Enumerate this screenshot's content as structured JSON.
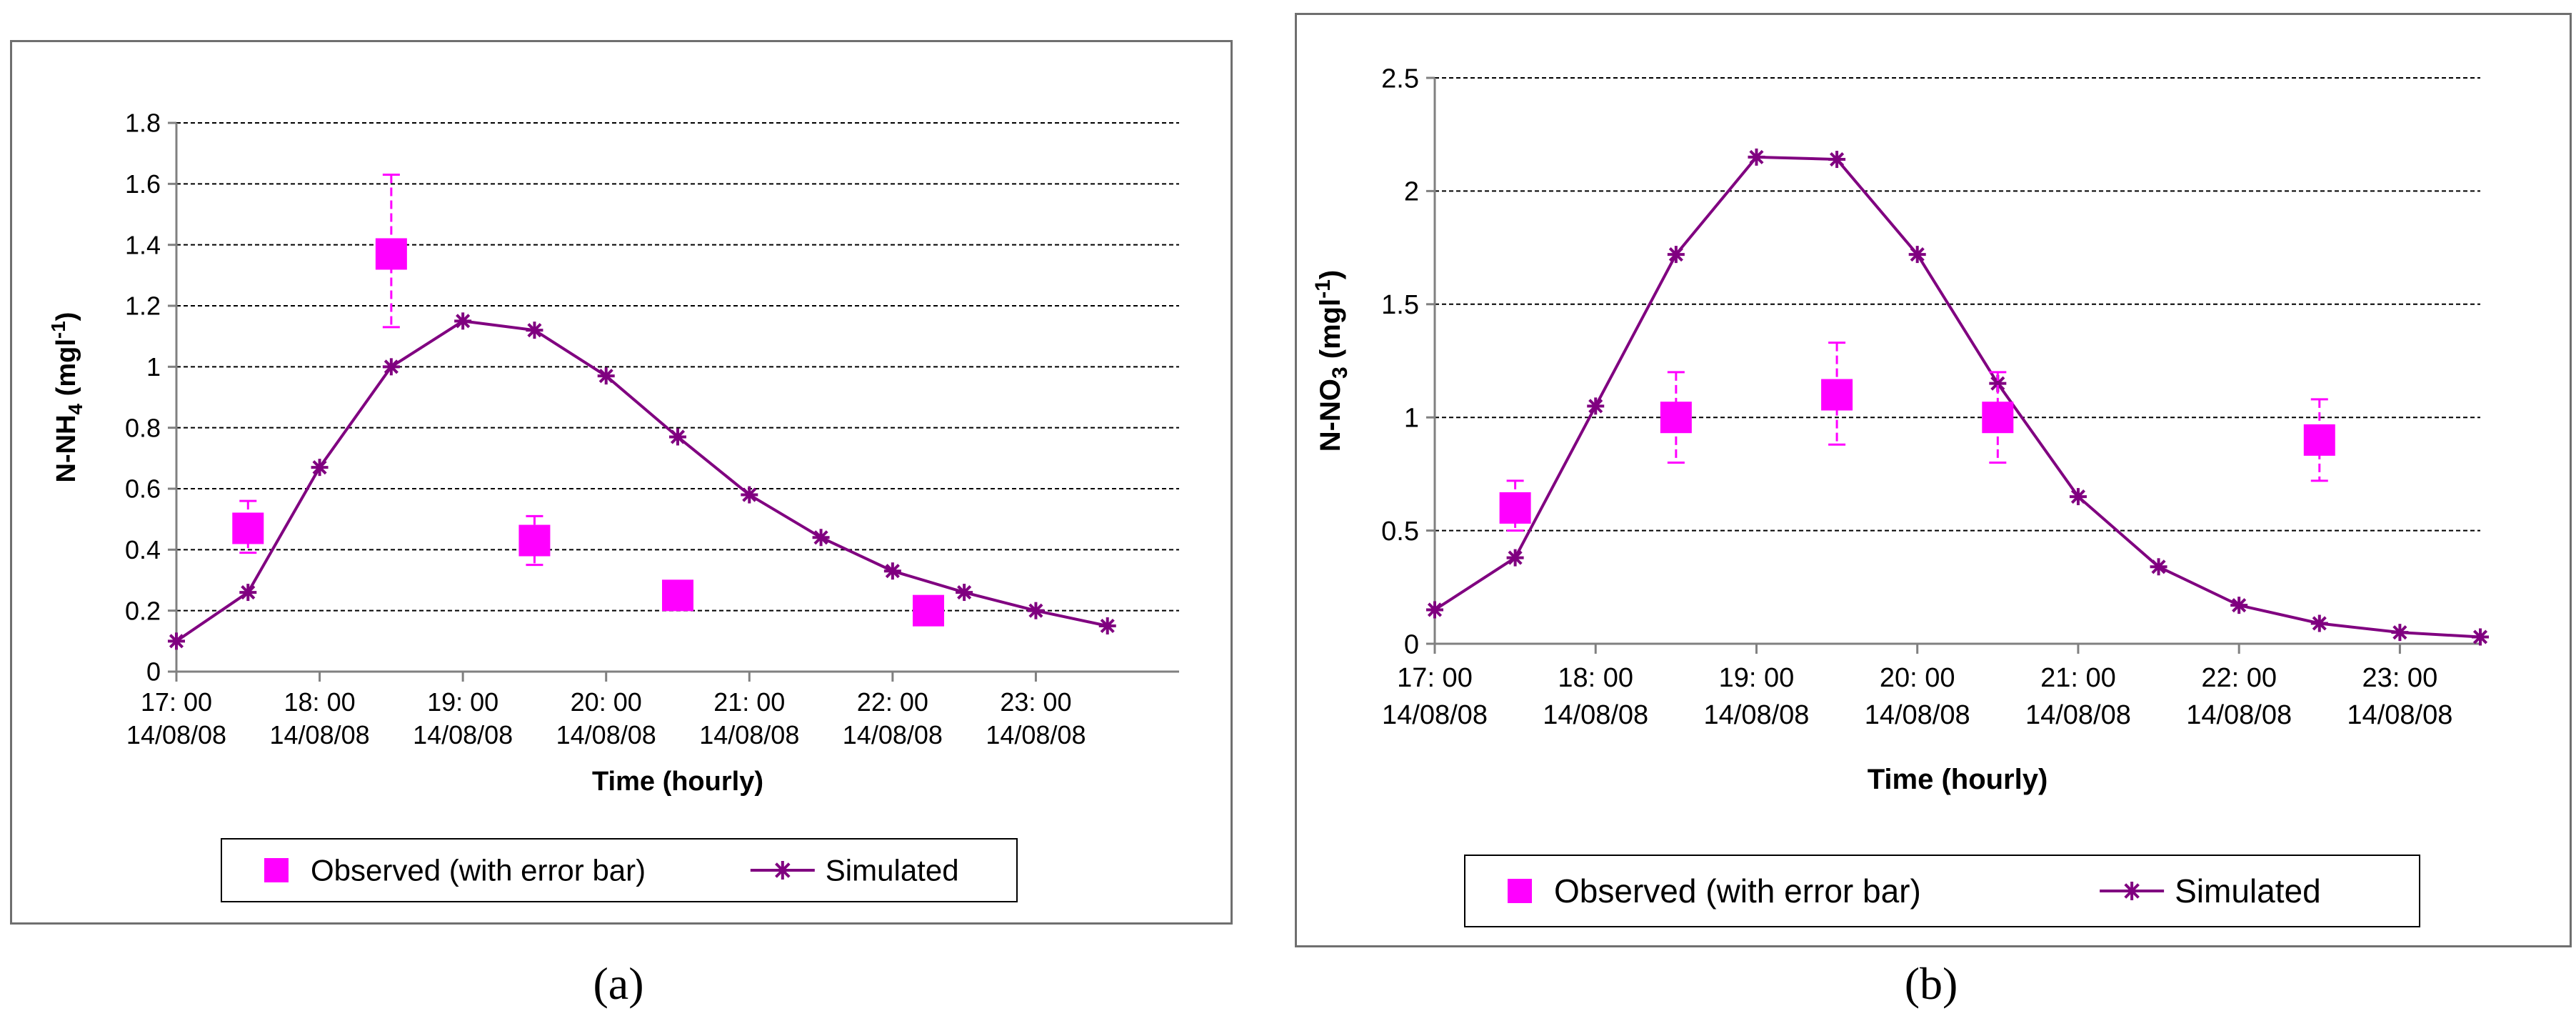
{
  "colors": {
    "observed": "#ff00ff",
    "simulated": "#800080",
    "grid": "#000000",
    "axis": "#808080"
  },
  "captions": {
    "a": "(a)",
    "b": "(b)"
  },
  "chart_data": [
    {
      "type": "line",
      "panel": "a",
      "title": "",
      "ylabel_parts": {
        "pre": "N-NH",
        "sub": "4",
        "mid": " (mgl",
        "sup": "-1",
        "post": ")"
      },
      "xlabel": "Time  (hourly)",
      "ylim": [
        0,
        1.8
      ],
      "yticks": [
        0,
        0.2,
        0.4,
        0.6,
        0.8,
        1,
        1.2,
        1.4,
        1.6,
        1.8
      ],
      "ytick_labels": [
        "0",
        "0.2",
        "0.4",
        "0.6",
        "0.8",
        "1",
        "1.2",
        "1.4",
        "1.6",
        "1.8"
      ],
      "xlim": [
        17,
        24
      ],
      "xtick_hours": [
        17,
        18,
        19,
        20,
        21,
        22,
        23
      ],
      "xtick_labels": [
        [
          "17: 00",
          "14/08/08"
        ],
        [
          "18: 00",
          "14/08/08"
        ],
        [
          "19: 00",
          "14/08/08"
        ],
        [
          "20: 00",
          "14/08/08"
        ],
        [
          "21: 00",
          "14/08/08"
        ],
        [
          "22: 00",
          "14/08/08"
        ],
        [
          "23: 00",
          "14/08/08"
        ]
      ],
      "grid": true,
      "legend": {
        "position": "bottom",
        "labels": [
          "Observed (with error bar)",
          "Simulated"
        ]
      },
      "series": [
        {
          "name": "Observed (with error bar)",
          "kind": "scatter-errorbar",
          "x": [
            17.5,
            18.5,
            19.5,
            20.5,
            22.25
          ],
          "y": [
            0.47,
            1.37,
            0.43,
            0.25,
            0.2
          ],
          "err_low": [
            0.39,
            1.13,
            0.35,
            null,
            null
          ],
          "err_high": [
            0.56,
            1.63,
            0.51,
            null,
            null
          ]
        },
        {
          "name": "Simulated",
          "kind": "line-star",
          "x": [
            17,
            17.5,
            18,
            18.5,
            19,
            19.5,
            20,
            20.5,
            21,
            21.5,
            22,
            22.5,
            23,
            23.5
          ],
          "y": [
            0.1,
            0.26,
            0.67,
            1.0,
            1.15,
            1.12,
            0.97,
            0.77,
            0.58,
            0.44,
            0.33,
            0.26,
            0.2,
            0.15
          ]
        }
      ]
    },
    {
      "type": "line",
      "panel": "b",
      "title": "",
      "ylabel_parts": {
        "pre": "N-NO",
        "sub": "3",
        "mid": " (mgl",
        "sup": "-1",
        "post": ")"
      },
      "xlabel": "Time  (hourly)",
      "ylim": [
        0,
        2.5
      ],
      "yticks": [
        0,
        0.5,
        1,
        1.5,
        2,
        2.5
      ],
      "ytick_labels": [
        "0",
        "0.5",
        "1",
        "1.5",
        "2",
        "2.5"
      ],
      "xlim": [
        17,
        23.5
      ],
      "xtick_hours": [
        17,
        18,
        19,
        20,
        21,
        22,
        23
      ],
      "xtick_labels": [
        [
          "17: 00",
          "14/08/08"
        ],
        [
          "18: 00",
          "14/08/08"
        ],
        [
          "19: 00",
          "14/08/08"
        ],
        [
          "20: 00",
          "14/08/08"
        ],
        [
          "21: 00",
          "14/08/08"
        ],
        [
          "22: 00",
          "14/08/08"
        ],
        [
          "23: 00",
          "14/08/08"
        ]
      ],
      "grid": true,
      "legend": {
        "position": "bottom",
        "labels": [
          "Observed (with error bar)",
          "Simulated"
        ]
      },
      "series": [
        {
          "name": "Observed (with error bar)",
          "kind": "scatter-errorbar",
          "x": [
            17.5,
            18.5,
            19.5,
            20.5,
            22.5
          ],
          "y": [
            0.6,
            1.0,
            1.1,
            1.0,
            0.9
          ],
          "err_low": [
            0.5,
            0.8,
            0.88,
            0.8,
            0.72
          ],
          "err_high": [
            0.72,
            1.2,
            1.33,
            1.2,
            1.08
          ]
        },
        {
          "name": "Simulated",
          "kind": "line-star",
          "x": [
            17,
            17.5,
            18,
            18.5,
            19,
            19.5,
            20,
            20.5,
            21,
            21.5,
            22,
            22.5,
            23,
            23.5
          ],
          "y": [
            0.15,
            0.38,
            1.05,
            1.72,
            2.15,
            2.14,
            1.72,
            1.15,
            0.65,
            0.34,
            0.17,
            0.09,
            0.05,
            0.03
          ]
        }
      ]
    }
  ]
}
